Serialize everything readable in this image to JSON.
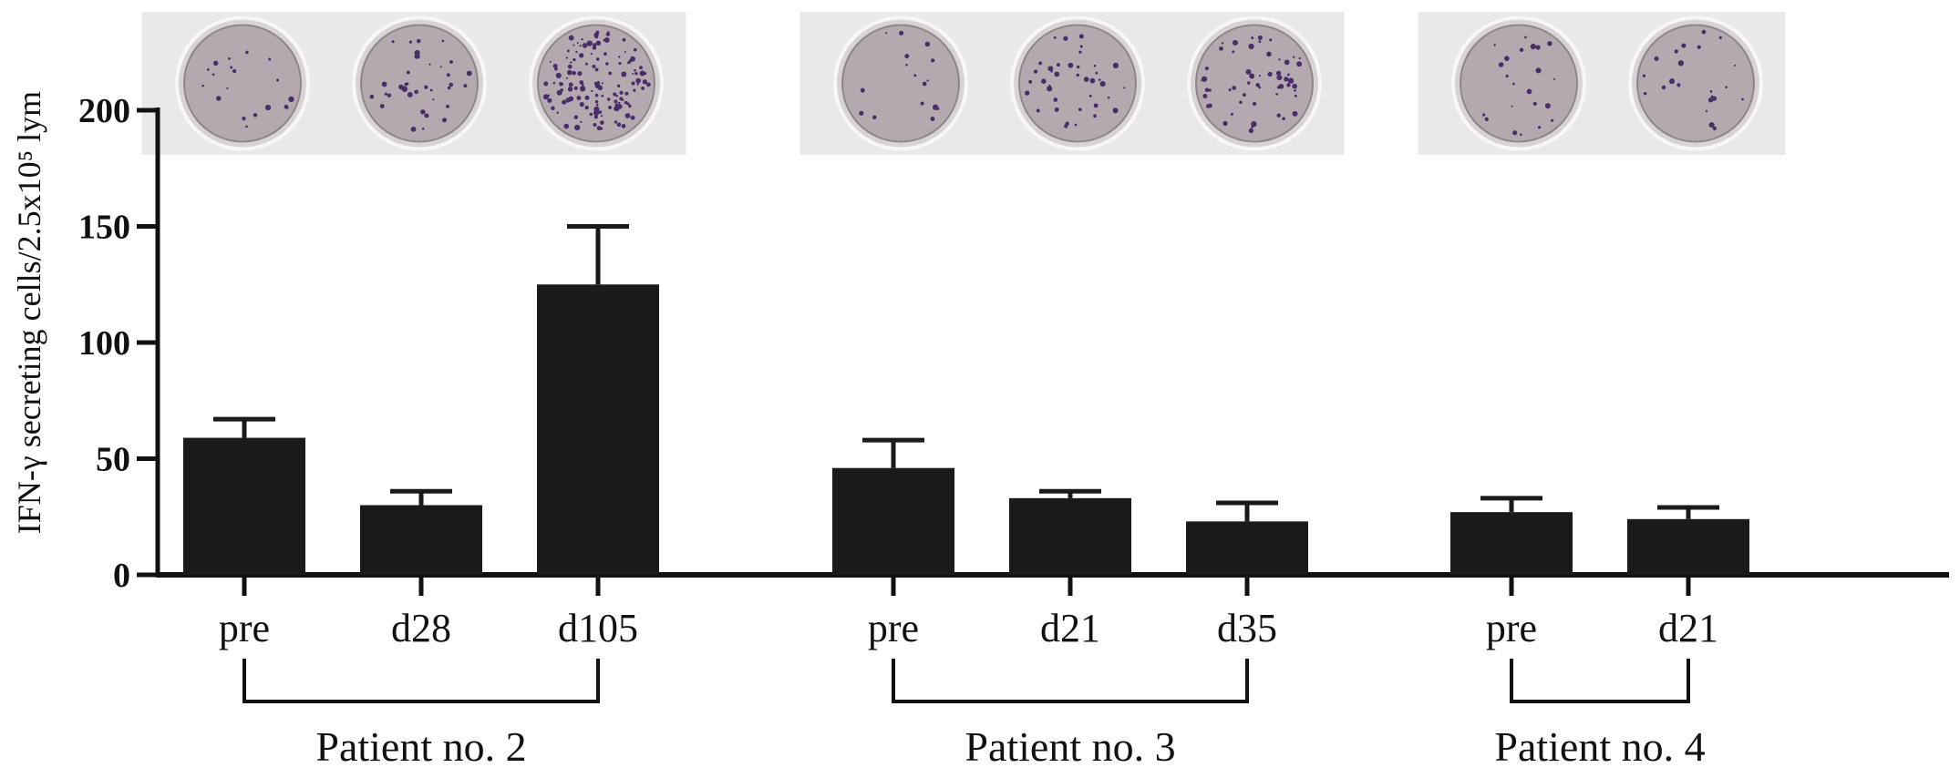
{
  "chart_data": {
    "type": "bar",
    "ylabel": "IFN-γ secreting cells/2.5x10⁵ lym",
    "ylim": [
      0,
      200
    ],
    "yticks": [
      "0",
      "50",
      "100",
      "150",
      "200"
    ],
    "grid": false,
    "legend": "none",
    "colors": {
      "bar": "#1a1a1a",
      "axis": "#111111",
      "well_fill": "#b3a9ae",
      "well_bg": "#e9e9e9",
      "spot": "#4a2c68"
    },
    "groups": [
      {
        "label": "Patient no. 2",
        "categories": [
          "pre",
          "d28",
          "d105"
        ],
        "values": [
          59,
          30,
          125
        ],
        "errors": [
          8,
          6,
          25
        ],
        "spot_density": [
          0.12,
          0.22,
          0.85
        ]
      },
      {
        "label": "Patient no. 3",
        "categories": [
          "pre",
          "d21",
          "d35"
        ],
        "values": [
          46,
          33,
          23
        ],
        "errors": [
          12,
          3,
          8
        ],
        "spot_density": [
          0.1,
          0.25,
          0.35
        ]
      },
      {
        "label": "Patient no. 4",
        "categories": [
          "pre",
          "d21"
        ],
        "values": [
          27,
          24
        ],
        "errors": [
          6,
          5
        ],
        "spot_density": [
          0.14,
          0.14
        ]
      }
    ]
  }
}
